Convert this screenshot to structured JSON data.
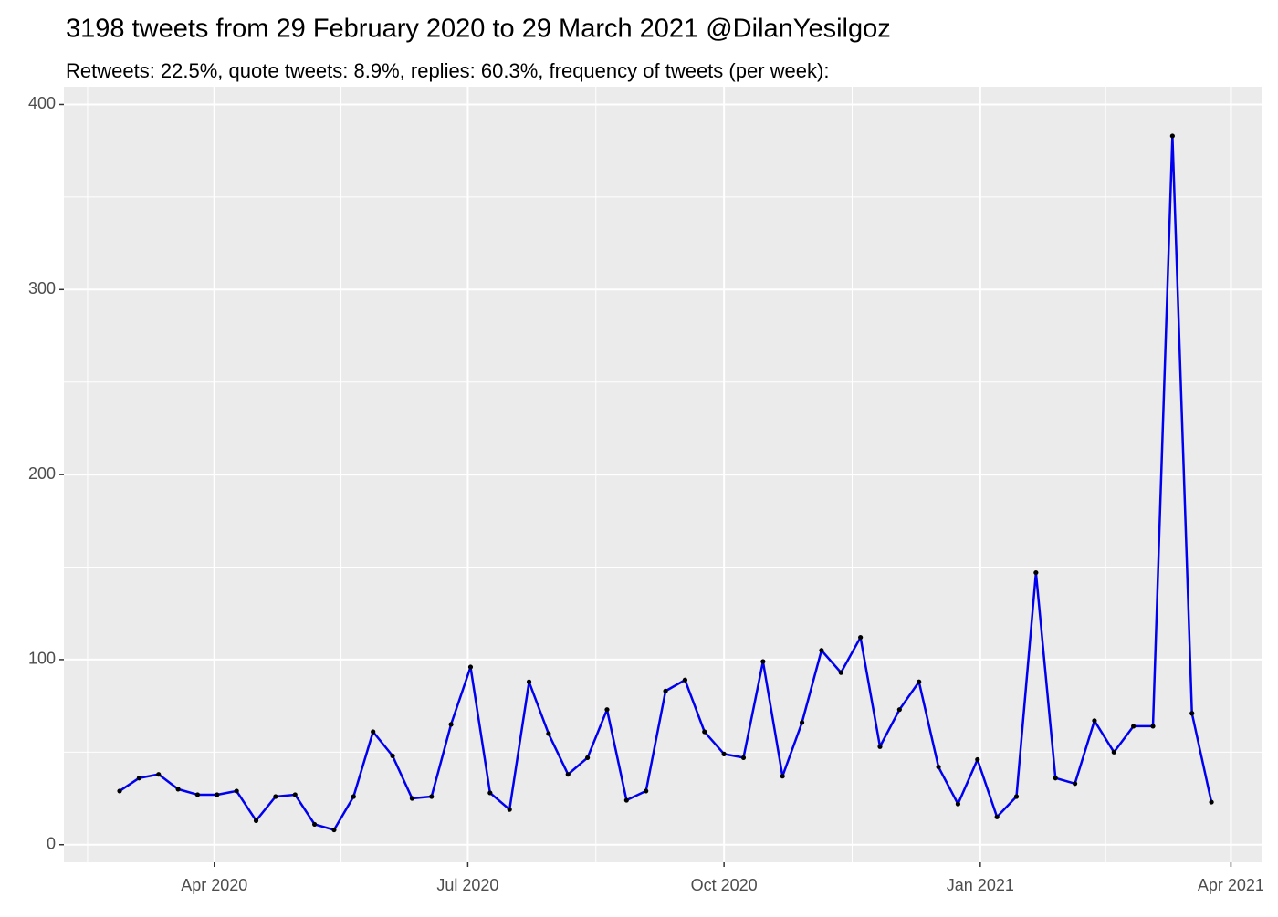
{
  "chart_data": {
    "type": "line",
    "title": "3198 tweets from 29 February 2020 to 29 March 2021 @DilanYesilgoz",
    "subtitle": "Retweets: 22.5%, quote tweets: 8.9%, replies: 60.3%, frequency of tweets (per week):",
    "x": [
      "2020-02-27",
      "2020-03-05",
      "2020-03-12",
      "2020-03-19",
      "2020-03-26",
      "2020-04-02",
      "2020-04-09",
      "2020-04-16",
      "2020-04-23",
      "2020-04-30",
      "2020-05-07",
      "2020-05-14",
      "2020-05-21",
      "2020-05-28",
      "2020-06-04",
      "2020-06-11",
      "2020-06-18",
      "2020-06-25",
      "2020-07-02",
      "2020-07-09",
      "2020-07-16",
      "2020-07-23",
      "2020-07-30",
      "2020-08-06",
      "2020-08-13",
      "2020-08-20",
      "2020-08-27",
      "2020-09-03",
      "2020-09-10",
      "2020-09-17",
      "2020-09-24",
      "2020-10-01",
      "2020-10-08",
      "2020-10-15",
      "2020-10-22",
      "2020-10-29",
      "2020-11-05",
      "2020-11-12",
      "2020-11-19",
      "2020-11-26",
      "2020-12-03",
      "2020-12-10",
      "2020-12-17",
      "2020-12-24",
      "2020-12-31",
      "2021-01-07",
      "2021-01-14",
      "2021-01-21",
      "2021-01-28",
      "2021-02-04",
      "2021-02-11",
      "2021-02-18",
      "2021-02-25",
      "2021-03-04",
      "2021-03-11",
      "2021-03-18",
      "2021-03-25"
    ],
    "values": [
      29,
      36,
      38,
      30,
      27,
      27,
      29,
      13,
      26,
      27,
      11,
      8,
      26,
      61,
      48,
      25,
      26,
      65,
      96,
      28,
      19,
      88,
      60,
      38,
      47,
      73,
      24,
      29,
      83,
      89,
      61,
      49,
      47,
      99,
      37,
      66,
      105,
      93,
      112,
      53,
      73,
      88,
      42,
      22,
      46,
      15,
      26,
      147,
      36,
      33,
      67,
      50,
      64,
      64,
      383,
      71,
      23
    ],
    "color": "#0000ee",
    "point_color": "#000000",
    "xlim": [
      "2020-02-07",
      "2021-04-12"
    ],
    "xticks": [
      {
        "value": "2020-04-01",
        "label": "Apr 2020"
      },
      {
        "value": "2020-07-01",
        "label": "Jul 2020"
      },
      {
        "value": "2020-10-01",
        "label": "Oct 2020"
      },
      {
        "value": "2021-01-01",
        "label": "Jan 2021"
      },
      {
        "value": "2021-04-01",
        "label": "Apr 2021"
      }
    ],
    "ylim": [
      -9.5,
      409.6
    ],
    "yticks": [
      0,
      100,
      200,
      300,
      400
    ],
    "grid": true
  }
}
